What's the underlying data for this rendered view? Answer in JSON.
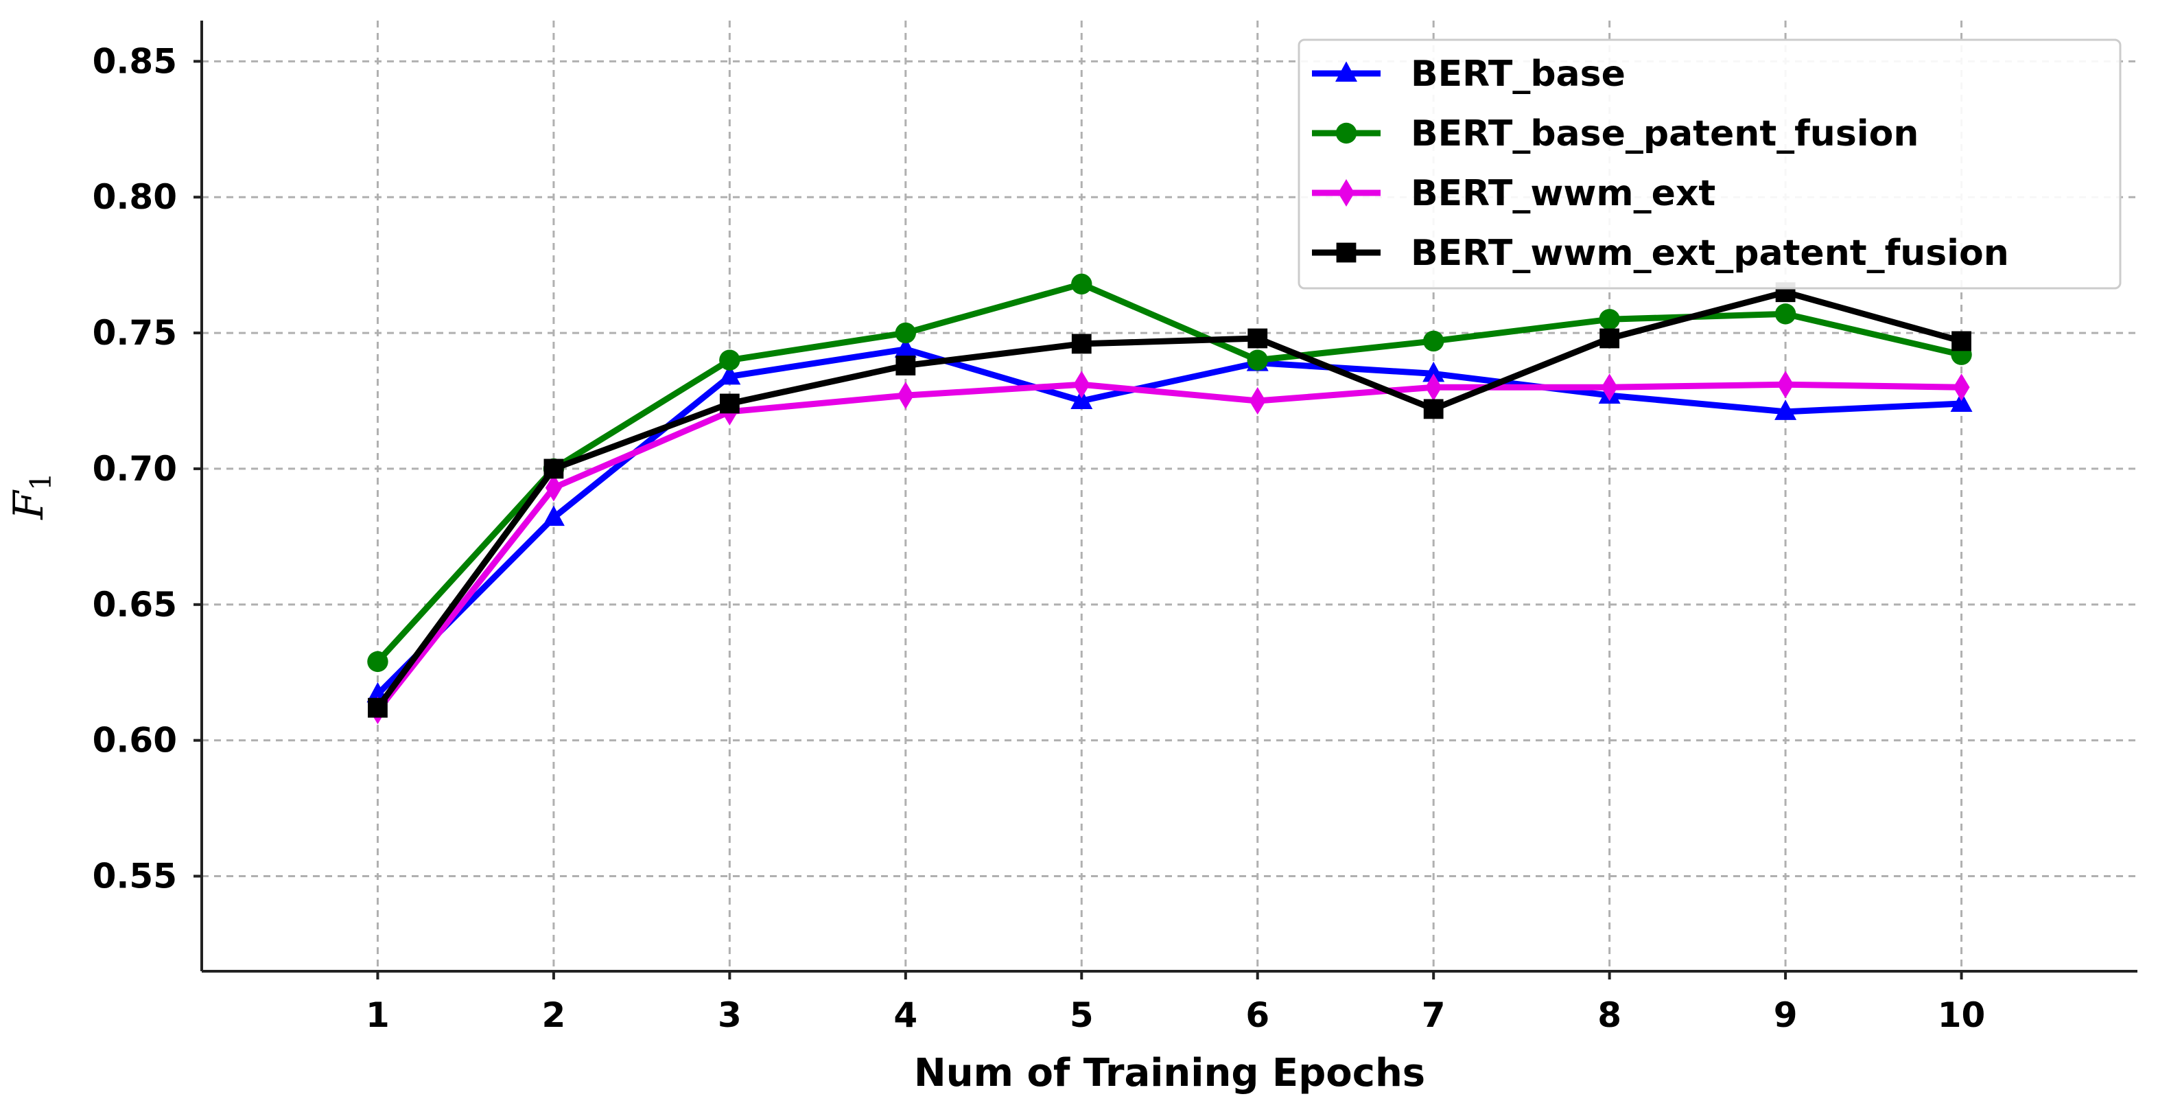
{
  "chart_data": {
    "type": "line",
    "x": [
      1,
      2,
      3,
      4,
      5,
      6,
      7,
      8,
      9,
      10
    ],
    "xlabel": "Num of Training Epochs",
    "ylabel": "F",
    "ylabel_subscript": "1",
    "ylim": [
      0.515,
      0.865
    ],
    "xlim": [
      0,
      11
    ],
    "yticks": [
      0.55,
      0.6,
      0.65,
      0.7,
      0.75,
      0.8,
      0.85
    ],
    "ytick_labels": [
      "0.55",
      "0.60",
      "0.65",
      "0.70",
      "0.75",
      "0.80",
      "0.85"
    ],
    "xticks": [
      1,
      2,
      3,
      4,
      5,
      6,
      7,
      8,
      9,
      10
    ],
    "xtick_labels": [
      "1",
      "2",
      "3",
      "4",
      "5",
      "6",
      "7",
      "8",
      "9",
      "10"
    ],
    "grid": true,
    "legend_position": "top-right",
    "series": [
      {
        "name": "BERT_base",
        "color": "#0000ff",
        "marker": "triangle",
        "values": [
          0.617,
          0.682,
          0.734,
          0.744,
          0.725,
          0.739,
          0.735,
          0.727,
          0.721,
          0.724
        ]
      },
      {
        "name": "BERT_base_patent_fusion",
        "color": "#008000",
        "marker": "circle",
        "values": [
          0.629,
          0.7,
          0.74,
          0.75,
          0.768,
          0.74,
          0.747,
          0.755,
          0.757,
          0.742
        ]
      },
      {
        "name": "BERT_wwm_ext",
        "color": "#e600e6",
        "marker": "diamond",
        "values": [
          0.611,
          0.693,
          0.721,
          0.727,
          0.731,
          0.725,
          0.73,
          0.73,
          0.731,
          0.73
        ]
      },
      {
        "name": "BERT_wwm_ext_patent_fusion",
        "color": "#000000",
        "marker": "square",
        "values": [
          0.612,
          0.7,
          0.724,
          0.738,
          0.746,
          0.748,
          0.722,
          0.748,
          0.765,
          0.747
        ]
      }
    ]
  }
}
